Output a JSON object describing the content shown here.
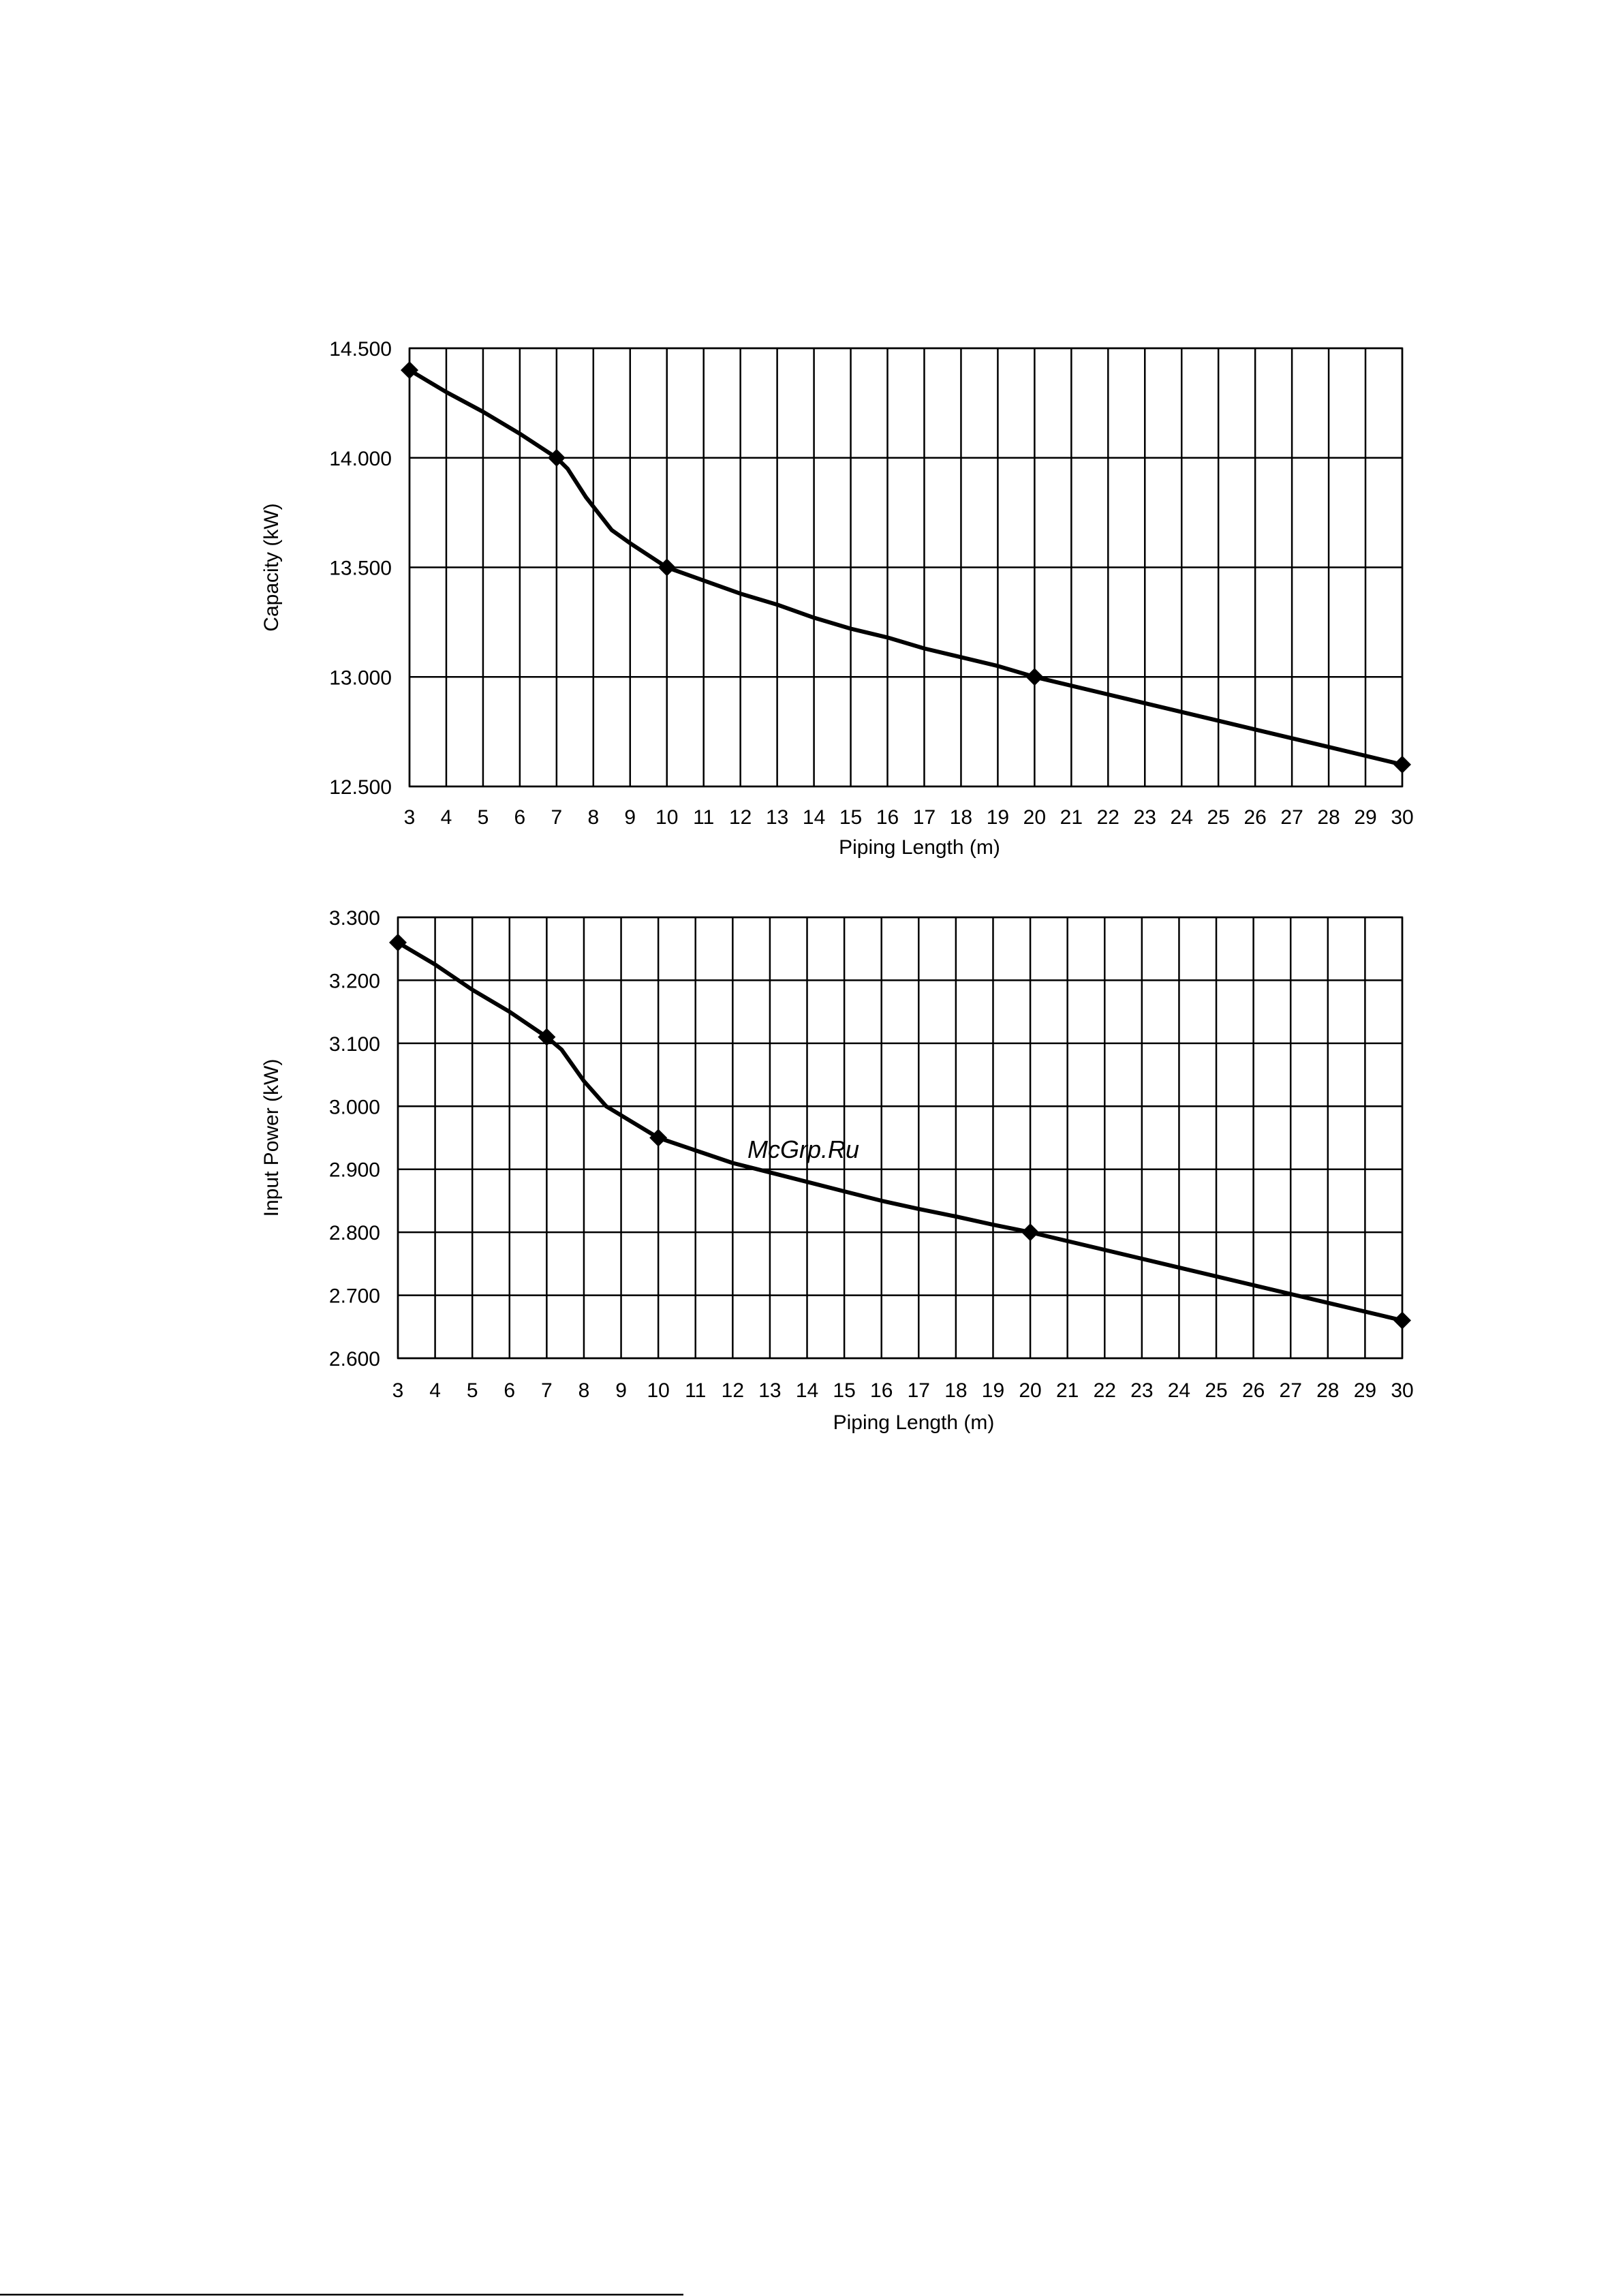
{
  "watermark": {
    "text": "McGrp.Ru",
    "color": "#e0141e"
  },
  "chart_data": [
    {
      "type": "line",
      "title": "",
      "xlabel": "Piping Length (m)",
      "ylabel": "Capacity (kW)",
      "x_ticks": [
        3,
        4,
        5,
        6,
        7,
        8,
        9,
        10,
        11,
        12,
        13,
        14,
        15,
        16,
        17,
        18,
        19,
        20,
        21,
        22,
        23,
        24,
        25,
        26,
        27,
        28,
        29,
        30
      ],
      "y_ticks": [
        "12.500",
        "13.000",
        "13.500",
        "14.000",
        "14.500"
      ],
      "xlim": [
        3,
        30
      ],
      "ylim": [
        12.5,
        14.5
      ],
      "grid": true,
      "series": [
        {
          "markers": [
            {
              "x": 3,
              "y": 14.4
            },
            {
              "x": 7,
              "y": 14.0
            },
            {
              "x": 10,
              "y": 13.5
            },
            {
              "x": 20,
              "y": 13.0
            },
            {
              "x": 30,
              "y": 12.6
            }
          ],
          "curve": [
            {
              "x": 3,
              "y": 14.4
            },
            {
              "x": 4,
              "y": 14.3
            },
            {
              "x": 5,
              "y": 14.21
            },
            {
              "x": 6,
              "y": 14.11
            },
            {
              "x": 7,
              "y": 14.0
            },
            {
              "x": 7.3,
              "y": 13.95
            },
            {
              "x": 7.8,
              "y": 13.82
            },
            {
              "x": 8.5,
              "y": 13.67
            },
            {
              "x": 9,
              "y": 13.61
            },
            {
              "x": 10,
              "y": 13.5
            },
            {
              "x": 11,
              "y": 13.44
            },
            {
              "x": 12,
              "y": 13.38
            },
            {
              "x": 13,
              "y": 13.33
            },
            {
              "x": 14,
              "y": 13.27
            },
            {
              "x": 15,
              "y": 13.22
            },
            {
              "x": 16,
              "y": 13.18
            },
            {
              "x": 17,
              "y": 13.13
            },
            {
              "x": 18,
              "y": 13.09
            },
            {
              "x": 19,
              "y": 13.05
            },
            {
              "x": 20,
              "y": 13.0
            },
            {
              "x": 22,
              "y": 12.92
            },
            {
              "x": 24,
              "y": 12.84
            },
            {
              "x": 26,
              "y": 12.76
            },
            {
              "x": 28,
              "y": 12.68
            },
            {
              "x": 30,
              "y": 12.6
            }
          ]
        }
      ]
    },
    {
      "type": "line",
      "title": "",
      "xlabel": "Piping Length (m)",
      "ylabel": "Input Power (kW)",
      "x_ticks": [
        3,
        4,
        5,
        6,
        7,
        8,
        9,
        10,
        11,
        12,
        13,
        14,
        15,
        16,
        17,
        18,
        19,
        20,
        21,
        22,
        23,
        24,
        25,
        26,
        27,
        28,
        29,
        30
      ],
      "y_ticks": [
        "2.600",
        "2.700",
        "2.800",
        "2.900",
        "3.000",
        "3.100",
        "3.200",
        "3.300"
      ],
      "xlim": [
        3,
        30
      ],
      "ylim": [
        2.6,
        3.3
      ],
      "grid": true,
      "series": [
        {
          "markers": [
            {
              "x": 3,
              "y": 3.26
            },
            {
              "x": 7,
              "y": 3.11
            },
            {
              "x": 10,
              "y": 2.95
            },
            {
              "x": 20,
              "y": 2.8
            },
            {
              "x": 30,
              "y": 2.66
            }
          ],
          "curve": [
            {
              "x": 3,
              "y": 3.26
            },
            {
              "x": 4,
              "y": 3.225
            },
            {
              "x": 5,
              "y": 3.185
            },
            {
              "x": 6,
              "y": 3.15
            },
            {
              "x": 7,
              "y": 3.11
            },
            {
              "x": 7.4,
              "y": 3.09
            },
            {
              "x": 8,
              "y": 3.04
            },
            {
              "x": 8.6,
              "y": 3.0
            },
            {
              "x": 9.3,
              "y": 2.975
            },
            {
              "x": 10,
              "y": 2.95
            },
            {
              "x": 11,
              "y": 2.93
            },
            {
              "x": 12,
              "y": 2.91
            },
            {
              "x": 13,
              "y": 2.895
            },
            {
              "x": 14,
              "y": 2.88
            },
            {
              "x": 15,
              "y": 2.865
            },
            {
              "x": 16,
              "y": 2.85
            },
            {
              "x": 17,
              "y": 2.837
            },
            {
              "x": 18,
              "y": 2.825
            },
            {
              "x": 19,
              "y": 2.812
            },
            {
              "x": 20,
              "y": 2.8
            },
            {
              "x": 22,
              "y": 2.772
            },
            {
              "x": 24,
              "y": 2.744
            },
            {
              "x": 26,
              "y": 2.716
            },
            {
              "x": 28,
              "y": 2.688
            },
            {
              "x": 30,
              "y": 2.66
            }
          ]
        }
      ]
    }
  ]
}
